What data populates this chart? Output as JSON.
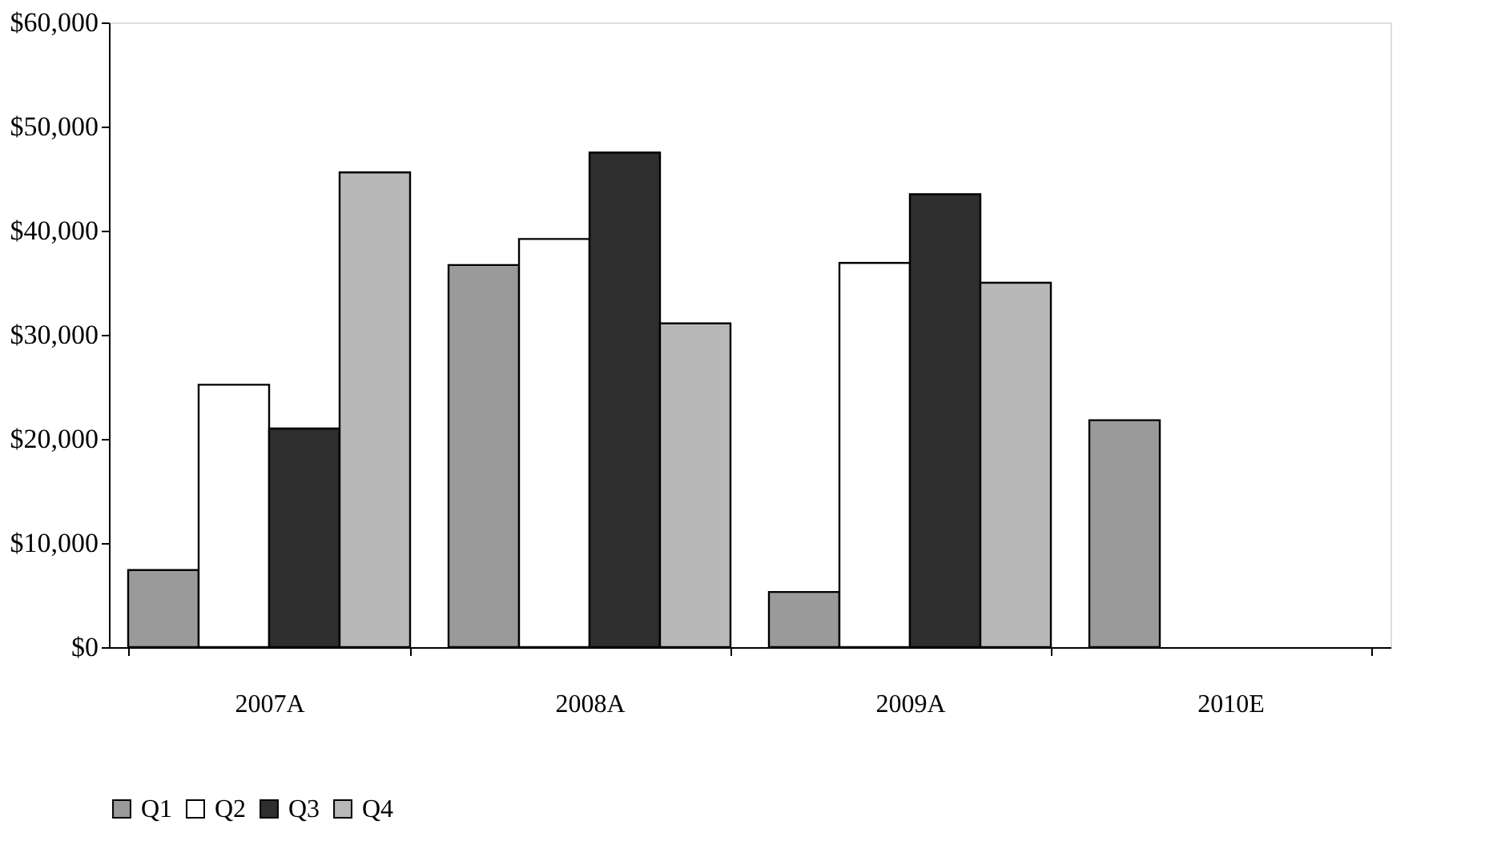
{
  "chart_data": {
    "type": "bar",
    "categories": [
      "2007A",
      "2008A",
      "2009A",
      "2010E"
    ],
    "series": [
      {
        "name": "Q1",
        "color": "#9a9a9a",
        "values": [
          7400,
          36700,
          5300,
          21800
        ]
      },
      {
        "name": "Q2",
        "color": "#ffffff",
        "values": [
          25200,
          39200,
          36900,
          null
        ]
      },
      {
        "name": "Q3",
        "color": "#2e2e2e",
        "values": [
          21000,
          47500,
          43500,
          null
        ]
      },
      {
        "name": "Q4",
        "color": "#b8b8b8",
        "values": [
          45600,
          31100,
          35000,
          null
        ]
      }
    ],
    "ylim": [
      0,
      60000
    ],
    "yticks": [
      {
        "value": 0,
        "label": "$0"
      },
      {
        "value": 10000,
        "label": "$10,000"
      },
      {
        "value": 20000,
        "label": "$20,000"
      },
      {
        "value": 30000,
        "label": "$30,000"
      },
      {
        "value": 40000,
        "label": "$40,000"
      },
      {
        "value": 50000,
        "label": "$50,000"
      },
      {
        "value": 60000,
        "label": "$60,000"
      }
    ],
    "grid": false,
    "legend": "bottom"
  }
}
